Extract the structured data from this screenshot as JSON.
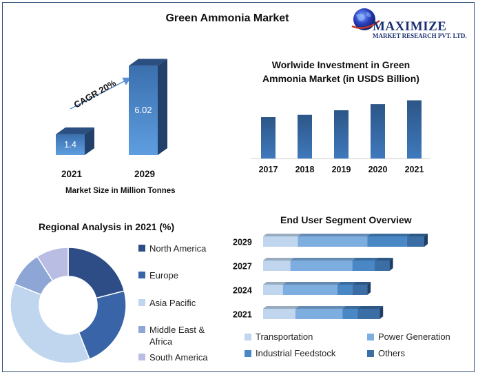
{
  "main_title": "Green Ammonia Market",
  "logo": {
    "name": "MAXIMIZE",
    "tagline": "MARKET RESEARCH PVT. LTD.",
    "icon": "globe-icon"
  },
  "colors": {
    "navy": "#2e4d86",
    "blue": "#3a64a8",
    "mid": "#4e8ccc",
    "light": "#bfd6ee",
    "lavender": "#b9bde3",
    "frame": "#2b4d75"
  },
  "market_size": {
    "cagr_label": "CAGR 20%",
    "caption": "Market Size in Million Tonnes"
  },
  "investment": {
    "title_line1": "Worlwide Investment in Green",
    "title_line2": "Ammonia Market (in USDS Billion)"
  },
  "regional": {
    "title": "Regional Analysis in 2021 (%)"
  },
  "end_user": {
    "title": "End User Segment Overview"
  },
  "chart_data": [
    {
      "type": "bar",
      "title": "",
      "xlabel": "Market Size in Million Tonnes",
      "categories": [
        "2021",
        "2029"
      ],
      "values": [
        1.4,
        6.02
      ],
      "data_labels": [
        "1.4",
        "6.02"
      ],
      "annotation": "CAGR 20%",
      "ylim": [
        0,
        6.5
      ],
      "grid": false
    },
    {
      "type": "bar",
      "title": "Worlwide Investment in Green Ammonia Market (in USDS Billion)",
      "categories": [
        "2017",
        "2018",
        "2019",
        "2020",
        "2021"
      ],
      "values": [
        5.4,
        5.7,
        6.3,
        7.1,
        7.6
      ],
      "ylim": [
        0,
        9
      ],
      "grid": false
    },
    {
      "type": "pie",
      "title": "Regional Analysis in 2021 (%)",
      "donut": true,
      "labels": [
        "North America",
        "Europe",
        "Asia Pacific",
        "Middle East & Africa",
        "South America"
      ],
      "values": [
        21,
        23,
        37,
        10,
        9
      ],
      "legend": "right"
    },
    {
      "type": "bar",
      "orientation": "horizontal",
      "stacked": true,
      "title": "End User Segment Overview",
      "categories": [
        "2029",
        "2027",
        "2024",
        "2021"
      ],
      "series": [
        {
          "name": "Transportation",
          "values": [
            14,
            11,
            8,
            13
          ]
        },
        {
          "name": "Power Generation",
          "values": [
            28,
            25,
            22,
            19
          ]
        },
        {
          "name": "Industrial Feedstock",
          "values": [
            16,
            9,
            6,
            6
          ]
        },
        {
          "name": "Others",
          "values": [
            7,
            6,
            6,
            9
          ]
        }
      ],
      "legend": "bottom"
    }
  ]
}
